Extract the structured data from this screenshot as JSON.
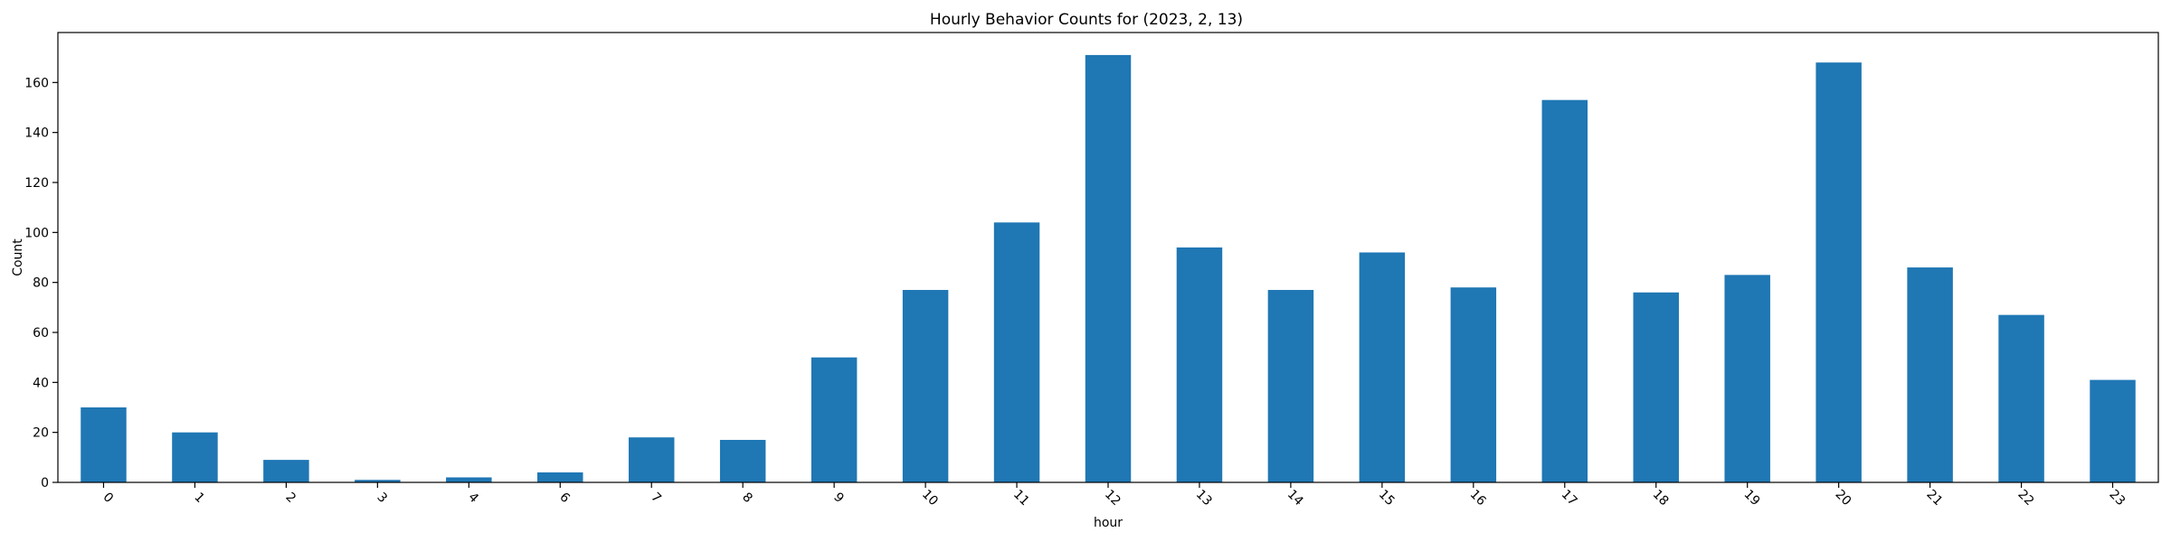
{
  "chart_data": {
    "type": "bar",
    "title": "Hourly Behavior Counts for (2023, 2, 13)",
    "xlabel": "hour",
    "ylabel": "Count",
    "categories": [
      "0",
      "1",
      "2",
      "3",
      "4",
      "6",
      "7",
      "8",
      "9",
      "10",
      "11",
      "12",
      "13",
      "14",
      "15",
      "16",
      "17",
      "18",
      "19",
      "20",
      "21",
      "22",
      "23"
    ],
    "values": [
      30,
      20,
      9,
      1,
      2,
      4,
      18,
      17,
      50,
      77,
      104,
      171,
      94,
      77,
      92,
      78,
      153,
      76,
      83,
      168,
      86,
      67,
      41
    ],
    "ylim": [
      0,
      180
    ],
    "yticks": [
      0,
      20,
      40,
      60,
      80,
      100,
      120,
      140,
      160
    ],
    "bar_color": "#1f77b4",
    "grid": false,
    "legend": "none"
  }
}
